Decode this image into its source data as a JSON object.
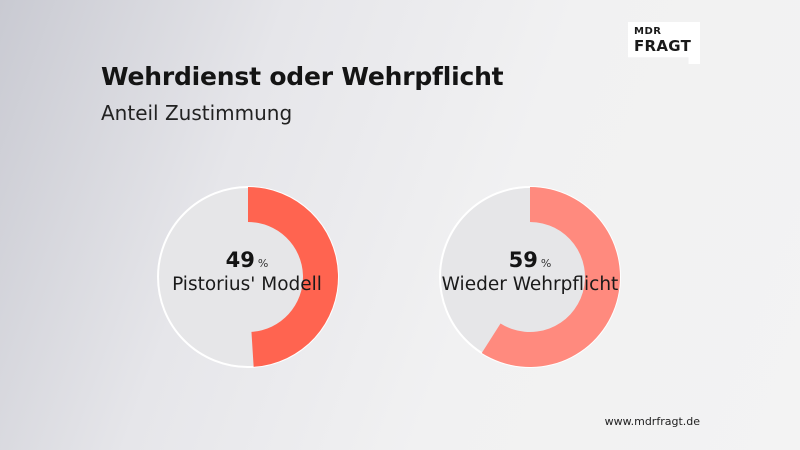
{
  "logo": {
    "line1": "MDR",
    "line2": "FRAGT"
  },
  "title": "Wehrdienst oder Wehrpflicht",
  "subtitle": "Anteil Zustimmung",
  "footer": "www.mdrfragt.de",
  "chart_data": [
    {
      "type": "pie",
      "variant": "donut",
      "category": "Pistorius' Modell",
      "value": 49,
      "unit": "%",
      "color": "#ff6450",
      "track_color": "#e6e6e8"
    },
    {
      "type": "pie",
      "variant": "donut",
      "category": "Wieder Wehrpflicht",
      "value": 59,
      "unit": "%",
      "color": "#ff8a7e",
      "track_color": "#e6e6e8"
    }
  ]
}
